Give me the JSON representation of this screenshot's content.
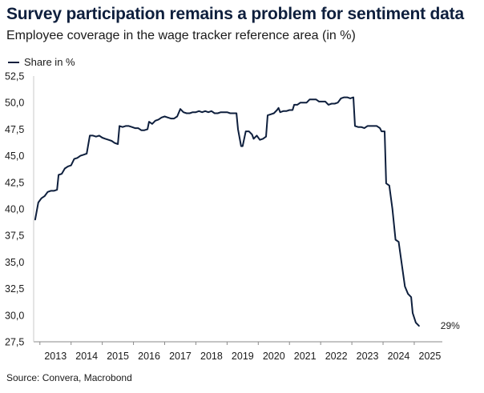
{
  "chart_data": {
    "type": "line",
    "title": "Survey participation remains a problem for sentiment data",
    "subtitle": "Employee coverage in the wage tracker reference area (in %)",
    "source": "Source: Convera, Macrobond",
    "ylim": [
      27.5,
      52.5
    ],
    "xlim": [
      2012.8,
      2025.9
    ],
    "yticks": [
      "27,5",
      "30,0",
      "32,5",
      "35,0",
      "37,5",
      "40,0",
      "42,5",
      "45,0",
      "47,5",
      "50,0",
      "52,5"
    ],
    "xticks": [
      "2013",
      "2014",
      "2015",
      "2016",
      "2017",
      "2018",
      "2019",
      "2020",
      "2021",
      "2022",
      "2023",
      "2024",
      "2025"
    ],
    "end_label": "29%",
    "color": "#0e1f3d",
    "series": [
      {
        "name": "Share in %",
        "points": [
          [
            2012.85,
            39.0
          ],
          [
            2012.95,
            40.6
          ],
          [
            2013.05,
            41.0
          ],
          [
            2013.15,
            41.2
          ],
          [
            2013.25,
            41.6
          ],
          [
            2013.35,
            41.7
          ],
          [
            2013.45,
            41.7
          ],
          [
            2013.55,
            41.8
          ],
          [
            2013.6,
            43.2
          ],
          [
            2013.7,
            43.3
          ],
          [
            2013.8,
            43.8
          ],
          [
            2013.9,
            44.0
          ],
          [
            2014.0,
            44.1
          ],
          [
            2014.1,
            44.7
          ],
          [
            2014.2,
            44.8
          ],
          [
            2014.3,
            45.0
          ],
          [
            2014.4,
            45.1
          ],
          [
            2014.5,
            45.2
          ],
          [
            2014.6,
            46.9
          ],
          [
            2014.7,
            46.9
          ],
          [
            2014.8,
            46.8
          ],
          [
            2014.9,
            46.9
          ],
          [
            2015.0,
            46.7
          ],
          [
            2015.1,
            46.6
          ],
          [
            2015.2,
            46.5
          ],
          [
            2015.3,
            46.4
          ],
          [
            2015.4,
            46.2
          ],
          [
            2015.5,
            46.1
          ],
          [
            2015.55,
            47.8
          ],
          [
            2015.65,
            47.7
          ],
          [
            2015.75,
            47.8
          ],
          [
            2015.85,
            47.8
          ],
          [
            2015.95,
            47.7
          ],
          [
            2016.05,
            47.6
          ],
          [
            2016.15,
            47.6
          ],
          [
            2016.25,
            47.4
          ],
          [
            2016.35,
            47.4
          ],
          [
            2016.45,
            47.5
          ],
          [
            2016.5,
            48.2
          ],
          [
            2016.6,
            48.0
          ],
          [
            2016.7,
            48.3
          ],
          [
            2016.8,
            48.4
          ],
          [
            2016.9,
            48.6
          ],
          [
            2017.0,
            48.7
          ],
          [
            2017.1,
            48.6
          ],
          [
            2017.2,
            48.5
          ],
          [
            2017.3,
            48.5
          ],
          [
            2017.4,
            48.7
          ],
          [
            2017.5,
            49.4
          ],
          [
            2017.6,
            49.1
          ],
          [
            2017.7,
            49.0
          ],
          [
            2017.8,
            49.0
          ],
          [
            2017.9,
            49.1
          ],
          [
            2018.0,
            49.1
          ],
          [
            2018.1,
            49.2
          ],
          [
            2018.2,
            49.1
          ],
          [
            2018.3,
            49.2
          ],
          [
            2018.4,
            49.1
          ],
          [
            2018.5,
            49.2
          ],
          [
            2018.6,
            49.0
          ],
          [
            2018.7,
            49.0
          ],
          [
            2018.8,
            49.1
          ],
          [
            2018.9,
            49.1
          ],
          [
            2019.0,
            49.1
          ],
          [
            2019.1,
            49.0
          ],
          [
            2019.2,
            49.0
          ],
          [
            2019.3,
            49.0
          ],
          [
            2019.35,
            47.5
          ],
          [
            2019.45,
            45.9
          ],
          [
            2019.5,
            45.9
          ],
          [
            2019.6,
            47.3
          ],
          [
            2019.7,
            47.3
          ],
          [
            2019.8,
            47.0
          ],
          [
            2019.85,
            46.6
          ],
          [
            2019.95,
            46.9
          ],
          [
            2020.05,
            46.5
          ],
          [
            2020.15,
            46.6
          ],
          [
            2020.25,
            46.8
          ],
          [
            2020.3,
            48.8
          ],
          [
            2020.4,
            48.9
          ],
          [
            2020.5,
            49.0
          ],
          [
            2020.6,
            49.3
          ],
          [
            2020.65,
            49.5
          ],
          [
            2020.7,
            49.1
          ],
          [
            2020.8,
            49.2
          ],
          [
            2020.9,
            49.2
          ],
          [
            2021.0,
            49.3
          ],
          [
            2021.1,
            49.3
          ],
          [
            2021.15,
            49.8
          ],
          [
            2021.25,
            49.8
          ],
          [
            2021.35,
            50.0
          ],
          [
            2021.45,
            50.0
          ],
          [
            2021.55,
            50.0
          ],
          [
            2021.65,
            50.3
          ],
          [
            2021.75,
            50.3
          ],
          [
            2021.85,
            50.3
          ],
          [
            2021.95,
            50.1
          ],
          [
            2022.05,
            50.1
          ],
          [
            2022.15,
            50.1
          ],
          [
            2022.25,
            49.8
          ],
          [
            2022.35,
            49.9
          ],
          [
            2022.45,
            49.9
          ],
          [
            2022.55,
            50.0
          ],
          [
            2022.65,
            50.4
          ],
          [
            2022.75,
            50.5
          ],
          [
            2022.85,
            50.5
          ],
          [
            2022.95,
            50.4
          ],
          [
            2023.05,
            50.5
          ],
          [
            2023.1,
            47.8
          ],
          [
            2023.2,
            47.7
          ],
          [
            2023.3,
            47.7
          ],
          [
            2023.4,
            47.6
          ],
          [
            2023.5,
            47.8
          ],
          [
            2023.6,
            47.8
          ],
          [
            2023.7,
            47.8
          ],
          [
            2023.8,
            47.8
          ],
          [
            2023.9,
            47.6
          ],
          [
            2023.95,
            47.3
          ],
          [
            2024.05,
            47.3
          ],
          [
            2024.1,
            42.4
          ],
          [
            2024.2,
            42.2
          ],
          [
            2024.3,
            40.0
          ],
          [
            2024.4,
            37.1
          ],
          [
            2024.5,
            36.9
          ],
          [
            2024.6,
            34.8
          ],
          [
            2024.7,
            32.7
          ],
          [
            2024.8,
            32.0
          ],
          [
            2024.9,
            31.7
          ],
          [
            2024.95,
            30.2
          ],
          [
            2025.05,
            29.3
          ],
          [
            2025.15,
            29.0
          ]
        ]
      }
    ]
  }
}
